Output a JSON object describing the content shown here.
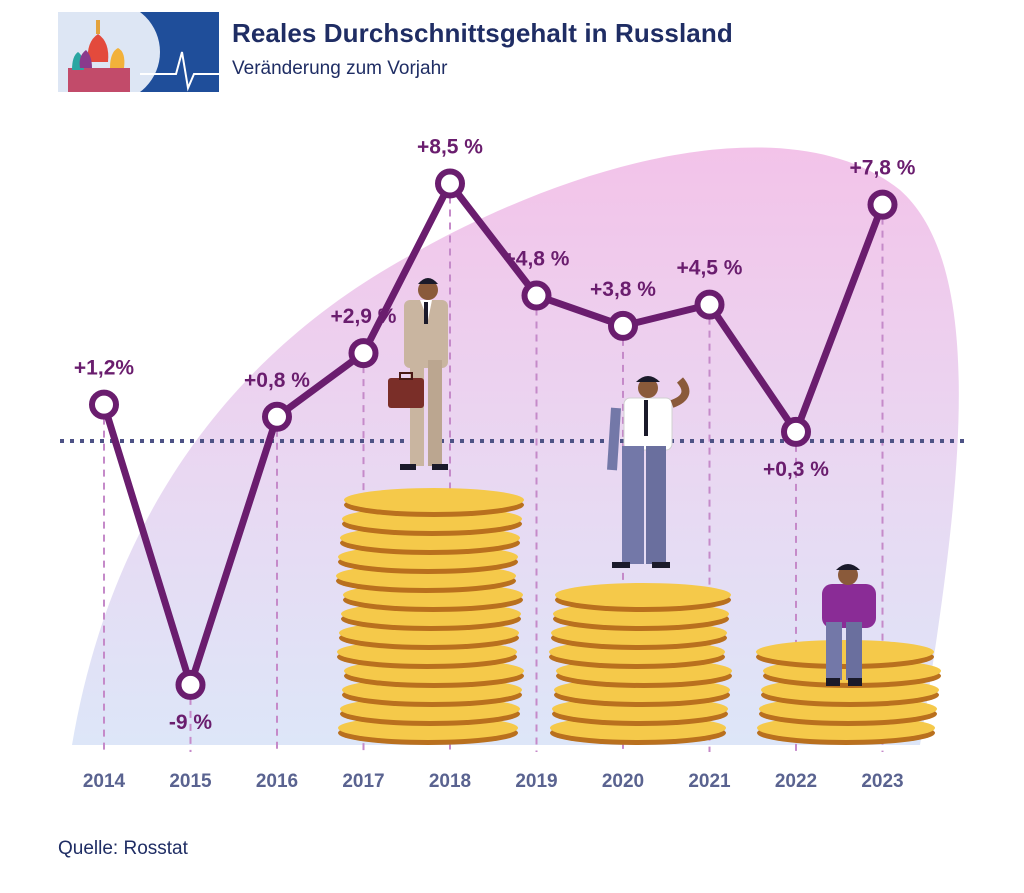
{
  "header": {
    "title": "Reales Durchschnittsgehalt in Russland",
    "subtitle": "Veränderung zum Vorjahr"
  },
  "footer": {
    "source": "Quelle: Rosstat"
  },
  "colors": {
    "line": "#6a1d6e",
    "title": "#1f2d64",
    "axis_text": "#5a6390",
    "baseline": "#4d5286",
    "coin": "#f5c94a",
    "coin_edge": "#b9701e",
    "blob_top": "#f3c8ea",
    "blob_bottom": "#dfe7f7"
  },
  "chart_data": {
    "type": "line",
    "title": "Reales Durchschnittsgehalt in Russland",
    "subtitle": "Veränderung zum Vorjahr",
    "xlabel": "",
    "ylabel": "",
    "categories": [
      "2014",
      "2015",
      "2016",
      "2017",
      "2018",
      "2019",
      "2020",
      "2021",
      "2022",
      "2023"
    ],
    "values": [
      1.2,
      -9.0,
      0.8,
      2.9,
      8.5,
      4.8,
      3.8,
      4.5,
      0.3,
      7.8
    ],
    "labels": [
      "+1,2%",
      "-9 %",
      "+0,8 %",
      "+2,9 %",
      "+8,5 %",
      "+4,8 %",
      "+3,8 %",
      "+4,5 %",
      "+0,3 %",
      "+7,8 %"
    ],
    "label_positions": [
      "above",
      "below",
      "above",
      "above",
      "above",
      "above",
      "above",
      "above",
      "below",
      "above"
    ],
    "baseline_value": 0,
    "grid": false,
    "legend": "none"
  }
}
